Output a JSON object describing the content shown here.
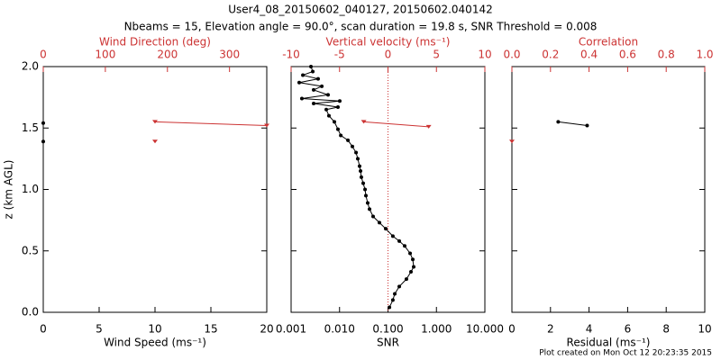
{
  "title": "User4_08_20150602_040127, 20150602.040142",
  "subtitle": "Nbeams = 15, Elevation angle = 90.0°, scan duration = 19.8 s, SNR Threshold = 0.008",
  "footnote": "Plot created on Mon Oct 12 20:23:35 2015",
  "chart_data": [
    {
      "type": "profile",
      "xlabel": "Wind Speed (ms⁻¹)",
      "x2label": "Wind Direction (deg)",
      "ylabel": "z (km AGL)",
      "xlim": [
        0,
        20
      ],
      "xticks": [
        0,
        5,
        10,
        15,
        20
      ],
      "x2lim": [
        0,
        360
      ],
      "x2ticks": [
        0,
        100,
        200,
        300
      ],
      "ylim": [
        0,
        2
      ],
      "yticks": [
        {
          "value": 0,
          "label": "0.0"
        },
        {
          "value": 0.5,
          "label": "0.5"
        },
        {
          "value": 1,
          "label": "1.0"
        },
        {
          "value": 1.5,
          "label": "1.5"
        },
        {
          "value": 2,
          "label": "2.0"
        }
      ],
      "show_ytick_labels": true,
      "series": [
        {
          "color": "#000000",
          "axis": "x",
          "line": false,
          "marker": "circle",
          "x": [
            0,
            0
          ],
          "y": [
            1.54,
            1.39
          ]
        },
        {
          "color": "#cc3333",
          "axis": "x2",
          "line": true,
          "marker": "triangle",
          "x": [
            180,
            360,
            null,
            180
          ],
          "y": [
            1.55,
            1.52,
            null,
            1.39
          ]
        }
      ]
    },
    {
      "type": "profile",
      "xlabel": "SNR",
      "x2label": "Vertical velocity (ms⁻¹)",
      "xscale": "log",
      "xlim": [
        0.001,
        10
      ],
      "xticks": [
        {
          "value": 0.001,
          "label": "0.001"
        },
        {
          "value": 0.01,
          "label": "0.010"
        },
        {
          "value": 0.1,
          "label": "0.100"
        },
        {
          "value": 1,
          "label": "1.000"
        },
        {
          "value": 10,
          "label": "10.000"
        }
      ],
      "x2lim": [
        -10,
        10
      ],
      "x2ticks": [
        -10,
        -5,
        0,
        5,
        10
      ],
      "x2_ref": 0,
      "ylim": [
        0,
        2
      ],
      "yticks": [
        0,
        0.5,
        1,
        1.5,
        2
      ],
      "show_ytick_labels": false,
      "series": [
        {
          "color": "#000000",
          "axis": "x",
          "line": true,
          "marker": "circle",
          "x": [
            0.107,
            0.126,
            0.138,
            0.171,
            0.24,
            0.298,
            0.339,
            0.325,
            0.286,
            0.221,
            0.171,
            0.126,
            0.0898,
            0.0666,
            0.0493,
            0.0416,
            0.0381,
            0.035,
            0.0336,
            0.0308,
            0.0282,
            0.0271,
            0.0259,
            0.0238,
            0.0219,
            0.0184,
            0.0149,
            0.0106,
            0.00927,
            0.00782,
            0.00604,
            0.00532,
            0.00927,
            0.00292,
            0.0101,
            0.00167,
            0.00579,
            0.00292,
            0.0043,
            0.00147,
            0.00361,
            0.00175,
            0.0028,
            0.00257
          ],
          "y": [
            0.04,
            0.1,
            0.15,
            0.21,
            0.27,
            0.33,
            0.37,
            0.43,
            0.48,
            0.54,
            0.58,
            0.62,
            0.68,
            0.73,
            0.78,
            0.84,
            0.89,
            0.95,
            1.0,
            1.05,
            1.1,
            1.15,
            1.19,
            1.25,
            1.3,
            1.35,
            1.4,
            1.44,
            1.49,
            1.55,
            1.6,
            1.65,
            1.67,
            1.7,
            1.72,
            1.74,
            1.77,
            1.81,
            1.84,
            1.87,
            1.9,
            1.93,
            1.96,
            2.0
          ]
        },
        {
          "color": "#cc3333",
          "axis": "x2",
          "line": true,
          "marker": "triangle",
          "x": [
            -2.5,
            4.2
          ],
          "y": [
            1.55,
            1.51
          ]
        }
      ]
    },
    {
      "type": "profile",
      "xlabel": "Residual (ms⁻¹)",
      "x2label": "Correlation",
      "xlim": [
        0,
        10
      ],
      "xticks": [
        0,
        2,
        4,
        6,
        8,
        10
      ],
      "x2lim": [
        0,
        1
      ],
      "x2ticks": [
        {
          "value": 0,
          "label": "0.0"
        },
        {
          "value": 0.2,
          "label": "0.2"
        },
        {
          "value": 0.4,
          "label": "0.4"
        },
        {
          "value": 0.6,
          "label": "0.6"
        },
        {
          "value": 0.8,
          "label": "0.8"
        },
        {
          "value": 1,
          "label": "1.0"
        }
      ],
      "ylim": [
        0,
        2
      ],
      "yticks": [
        0,
        0.5,
        1,
        1.5,
        2
      ],
      "show_ytick_labels": false,
      "series": [
        {
          "color": "#000000",
          "axis": "x",
          "line": true,
          "marker": "circle",
          "x": [
            2.4,
            3.9
          ],
          "y": [
            1.55,
            1.52
          ]
        },
        {
          "color": "#cc3333",
          "axis": "x2",
          "line": false,
          "marker": "triangle",
          "x": [
            0
          ],
          "y": [
            1.39
          ]
        }
      ]
    }
  ]
}
